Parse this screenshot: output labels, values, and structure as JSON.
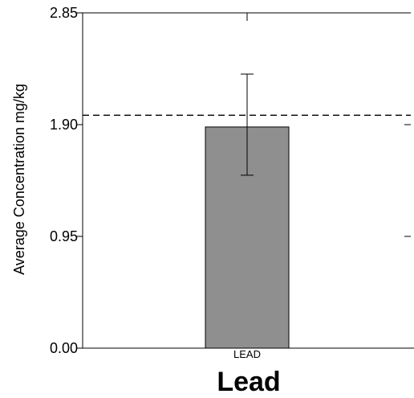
{
  "chart_data": {
    "type": "bar",
    "categories": [
      "LEAD"
    ],
    "values": [
      1.88
    ],
    "error_bars": [
      {
        "low": 1.47,
        "high": 2.33
      }
    ],
    "reference_line": {
      "value": 1.98,
      "style": "dashed"
    },
    "title": "",
    "xlabel": "Lead",
    "ylabel": "Average Concentration mg/kg",
    "ylim": [
      0,
      2.85
    ],
    "yticks": [
      "0.00",
      "0.95",
      "1.90",
      "2.85"
    ],
    "ytick_values": [
      0,
      0.95,
      1.9,
      2.85
    ],
    "grid": false,
    "legend": "none",
    "colors": {
      "bar_fill": "#8f8f8f",
      "bar_stroke": "#000000",
      "axis": "#000000"
    }
  }
}
